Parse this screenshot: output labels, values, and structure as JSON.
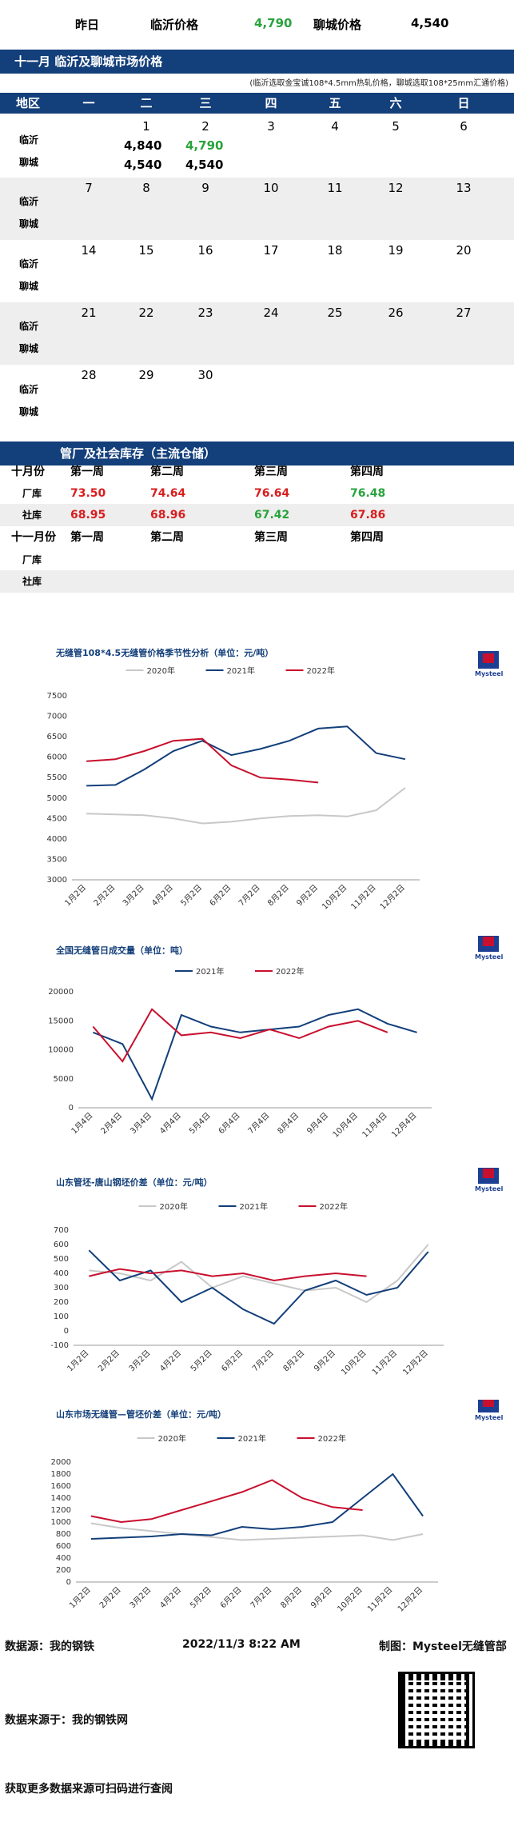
{
  "top": {
    "yesterday": "昨日",
    "linyi_label": "临沂价格",
    "linyi_value": "4,790",
    "liaocheng_label": "聊城价格",
    "liaocheng_value": "4,540"
  },
  "calendar": {
    "title": "十一月  临沂及聊城市场价格",
    "note": "(临沂选取金宝诚108*4.5mm热轧价格，聊城选取108*25mm汇通价格)",
    "headers": [
      "地区",
      "一",
      "二",
      "三",
      "四",
      "五",
      "六",
      "日"
    ],
    "city1": "临沂",
    "city2": "聊城",
    "weeks": [
      [
        "",
        "1",
        "2",
        "3",
        "4",
        "5",
        "6"
      ],
      [
        "7",
        "8",
        "9",
        "10",
        "11",
        "12",
        "13"
      ],
      [
        "14",
        "15",
        "16",
        "17",
        "18",
        "19",
        "20"
      ],
      [
        "21",
        "22",
        "23",
        "24",
        "25",
        "26",
        "27"
      ],
      [
        "28",
        "29",
        "30",
        "",
        "",
        "",
        ""
      ]
    ],
    "prices": {
      "linyi_1": "4,840",
      "linyi_2": "4,790",
      "liaocheng_1": "4,540",
      "liaocheng_2": "4,540"
    }
  },
  "inventory": {
    "title": "管厂及社会库存（主流仓储）",
    "month1": "十月份",
    "month2": "十一月份",
    "weeks": [
      "第一周",
      "第二周",
      "第三周",
      "第四周"
    ],
    "factory": "厂库",
    "social": "社库",
    "oct_factory": [
      "73.50",
      "74.64",
      "76.64",
      "76.48"
    ],
    "oct_social": [
      "68.95",
      "68.96",
      "67.42",
      "67.86"
    ],
    "colors": {
      "red": "#d81e1e",
      "green": "#29a33c"
    }
  },
  "chart_data": [
    {
      "type": "line",
      "title": "无缝管108*4.5无缝管价格季节性分析（单位：元/吨）",
      "x": [
        "1月2日",
        "2月2日",
        "3月2日",
        "4月2日",
        "5月2日",
        "6月2日",
        "7月2日",
        "8月2日",
        "9月2日",
        "10月2日",
        "11月2日",
        "12月2日"
      ],
      "ylim": [
        3000,
        7500
      ],
      "yticks": [
        3000,
        3500,
        4000,
        4500,
        5000,
        5500,
        6000,
        6500,
        7000,
        7500
      ],
      "series": [
        {
          "name": "2020年",
          "color": "#c8c8c8",
          "values": [
            4620,
            4600,
            4580,
            4500,
            4380,
            4420,
            4500,
            4560,
            4580,
            4550,
            4700,
            5250
          ]
        },
        {
          "name": "2021年",
          "color": "#133f7a",
          "values": [
            5300,
            5320,
            5700,
            6150,
            6400,
            6050,
            6200,
            6400,
            6700,
            6750,
            6100,
            5950
          ]
        },
        {
          "name": "2022年",
          "color": "#c8102e",
          "values": [
            5900,
            5950,
            6150,
            6400,
            6450,
            5800,
            5500,
            5450,
            5380,
            null,
            null,
            null
          ]
        }
      ]
    },
    {
      "type": "line",
      "title": "全国无缝管日成交量（单位：吨）",
      "x": [
        "1月4日",
        "2月4日",
        "3月4日",
        "4月4日",
        "5月4日",
        "6月4日",
        "7月4日",
        "8月4日",
        "9月4日",
        "10月4日",
        "11月4日",
        "12月4日"
      ],
      "ylim": [
        0,
        20000
      ],
      "yticks": [
        0,
        5000,
        10000,
        15000,
        20000
      ],
      "series": [
        {
          "name": "2021年",
          "color": "#133f7a",
          "values": [
            13000,
            11000,
            1500,
            16000,
            14000,
            13000,
            13500,
            14000,
            16000,
            17000,
            14500,
            13000
          ]
        },
        {
          "name": "2022年",
          "color": "#c8102e",
          "values": [
            14000,
            8000,
            17000,
            12500,
            13000,
            12000,
            13500,
            12000,
            14000,
            15000,
            13000,
            null
          ]
        }
      ]
    },
    {
      "type": "line",
      "title": "山东管坯-唐山钢坯价差（单位：元/吨）",
      "x": [
        "1月2日",
        "2月2日",
        "3月2日",
        "4月2日",
        "5月2日",
        "6月2日",
        "7月2日",
        "8月2日",
        "9月2日",
        "10月2日",
        "11月2日",
        "12月2日"
      ],
      "ylim": [
        -100,
        700
      ],
      "yticks": [
        -100,
        0,
        100,
        200,
        300,
        400,
        500,
        600,
        700
      ],
      "series": [
        {
          "name": "2020年",
          "color": "#c8c8c8",
          "values": [
            420,
            400,
            350,
            480,
            300,
            380,
            330,
            280,
            300,
            200,
            350,
            600
          ]
        },
        {
          "name": "2021年",
          "color": "#133f7a",
          "values": [
            560,
            350,
            420,
            200,
            300,
            150,
            50,
            280,
            350,
            250,
            300,
            550
          ]
        },
        {
          "name": "2022年",
          "color": "#c8102e",
          "values": [
            380,
            430,
            400,
            420,
            380,
            400,
            350,
            380,
            400,
            380,
            null,
            null
          ]
        }
      ]
    },
    {
      "type": "line",
      "title": "山东市场无缝管—管坯价差（单位：元/吨）",
      "x": [
        "1月2日",
        "2月2日",
        "3月2日",
        "4月2日",
        "5月2日",
        "6月2日",
        "7月2日",
        "8月2日",
        "9月2日",
        "10月2日",
        "11月2日",
        "12月2日"
      ],
      "ylim": [
        0,
        2000
      ],
      "yticks": [
        0,
        200,
        400,
        600,
        800,
        1000,
        1200,
        1400,
        1600,
        1800,
        2000
      ],
      "series": [
        {
          "name": "2020年",
          "color": "#c8c8c8",
          "values": [
            980,
            900,
            850,
            800,
            750,
            700,
            720,
            740,
            760,
            780,
            700,
            800
          ]
        },
        {
          "name": "2021年",
          "color": "#133f7a",
          "values": [
            720,
            740,
            760,
            800,
            780,
            920,
            880,
            920,
            1000,
            1400,
            1800,
            1100
          ]
        },
        {
          "name": "2022年",
          "color": "#c8102e",
          "values": [
            1100,
            1000,
            1050,
            1200,
            1350,
            1500,
            1700,
            1400,
            1250,
            1200,
            null,
            null
          ]
        }
      ]
    }
  ],
  "footer": {
    "source": "数据源：我的钢铁",
    "datetime": "2022/11/3 8:22 AM",
    "maker": "制图：Mysteel无缝管部",
    "source2": "数据来源于：我的钢铁网",
    "more": "获取更多数据来源可扫码进行查阅",
    "logo": "Mysteel"
  }
}
